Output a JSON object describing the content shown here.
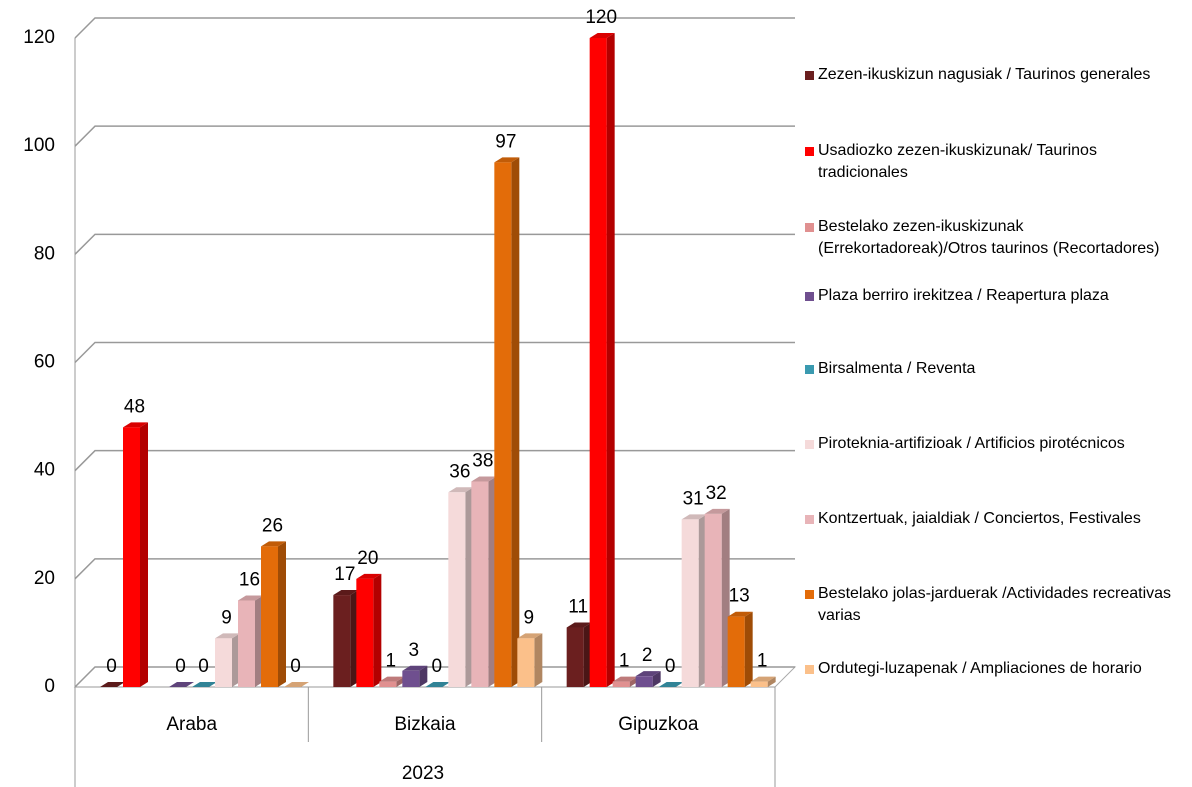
{
  "chart_data": {
    "type": "bar",
    "categories": [
      "Araba",
      "Bizkaia",
      "Gipuzkoa"
    ],
    "group_label": "2023",
    "ylim": [
      0,
      120
    ],
    "yticks": [
      0,
      20,
      40,
      60,
      80,
      100,
      120
    ],
    "grid": true,
    "legend": "right",
    "series": [
      {
        "name": "Zezen-ikuskizun nagusiak / Taurinos generales",
        "color": "#6b1f1f",
        "values": [
          0,
          17,
          11
        ]
      },
      {
        "name": "Usadiozko zezen-ikuskizunak/ Taurinos tradicionales",
        "color": "#ff0000",
        "values": [
          48,
          20,
          120
        ]
      },
      {
        "name": "Bestelako zezen-ikuskizunak (Errekortadoreak)/Otros taurinos (Recortadores)",
        "color": "#e09090",
        "values": [
          null,
          1,
          1
        ]
      },
      {
        "name": "Plaza berriro irekitzea  / Reapertura plaza",
        "color": "#6f4f8f",
        "values": [
          0,
          3,
          2
        ]
      },
      {
        "name": "Birsalmenta / Reventa",
        "color": "#3a9ab0",
        "values": [
          0,
          0,
          0
        ]
      },
      {
        "name": "Piroteknia-artifizioak / Artificios pirotécnicos",
        "color": "#f5dada",
        "values": [
          9,
          36,
          31
        ]
      },
      {
        "name": "Kontzertuak, jaialdiak / Conciertos, Festivales",
        "color": "#e8b4b8",
        "values": [
          16,
          38,
          32
        ]
      },
      {
        "name": "Bestelako jolas-jarduerak /Actividades recreativas varias",
        "color": "#e36c09",
        "values": [
          26,
          97,
          13
        ]
      },
      {
        "name": "Ordutegi-luzapenak / Ampliaciones de horario",
        "color": "#fbc08a",
        "values": [
          0,
          9,
          1
        ]
      }
    ]
  }
}
